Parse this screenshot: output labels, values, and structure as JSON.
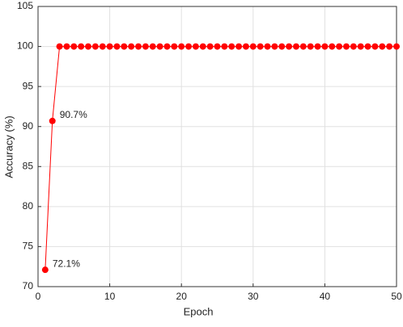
{
  "chart_data": {
    "type": "line",
    "xlabel": "Epoch",
    "ylabel": "Accuracy (%)",
    "x": [
      1,
      2,
      3,
      4,
      5,
      6,
      7,
      8,
      9,
      10,
      11,
      12,
      13,
      14,
      15,
      16,
      17,
      18,
      19,
      20,
      21,
      22,
      23,
      24,
      25,
      26,
      27,
      28,
      29,
      30,
      31,
      32,
      33,
      34,
      35,
      36,
      37,
      38,
      39,
      40,
      41,
      42,
      43,
      44,
      45,
      46,
      47,
      48,
      49,
      50
    ],
    "series": [
      {
        "color": "#ff0000",
        "values": [
          72.1,
          90.7,
          100,
          100,
          100,
          100,
          100,
          100,
          100,
          100,
          100,
          100,
          100,
          100,
          100,
          100,
          100,
          100,
          100,
          100,
          100,
          100,
          100,
          100,
          100,
          100,
          100,
          100,
          100,
          100,
          100,
          100,
          100,
          100,
          100,
          100,
          100,
          100,
          100,
          100,
          100,
          100,
          100,
          100,
          100,
          100,
          100,
          100,
          100,
          100
        ],
        "value_labels": [
          "72.1%",
          "90.7%",
          null,
          null,
          null,
          null,
          null,
          null,
          null,
          null,
          null,
          null,
          null,
          null,
          null,
          null,
          null,
          null,
          null,
          null,
          null,
          null,
          null,
          null,
          null,
          null,
          null,
          null,
          null,
          null,
          null,
          null,
          null,
          null,
          null,
          null,
          null,
          null,
          null,
          null,
          null,
          null,
          null,
          null,
          null,
          null,
          null,
          null,
          null,
          null
        ]
      }
    ],
    "xlim": [
      0,
      50
    ],
    "ylim": [
      70,
      105
    ],
    "xticks": [
      0,
      10,
      20,
      30,
      40,
      50
    ],
    "yticks": [
      70,
      75,
      80,
      85,
      90,
      95,
      100,
      105
    ],
    "grid": true
  }
}
